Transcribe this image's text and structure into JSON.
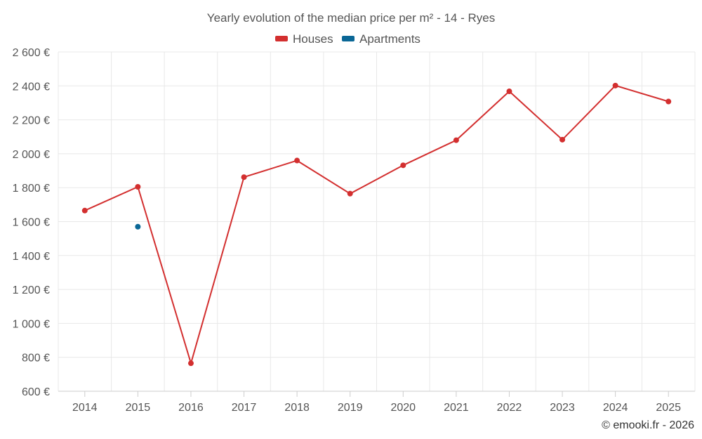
{
  "chart_data": {
    "type": "line",
    "title": "Yearly evolution of the median price per m² - 14 - Ryes",
    "xlabel": "",
    "ylabel": "",
    "categories": [
      "2014",
      "2015",
      "2016",
      "2017",
      "2018",
      "2019",
      "2020",
      "2021",
      "2022",
      "2023",
      "2024",
      "2025"
    ],
    "ylim": [
      600,
      2600
    ],
    "yticks": [
      600,
      800,
      1000,
      1200,
      1400,
      1600,
      1800,
      2000,
      2200,
      2400,
      2600
    ],
    "ytick_labels": [
      "600 €",
      "800 €",
      "1 000 €",
      "1 200 €",
      "1 400 €",
      "1 600 €",
      "1 800 €",
      "2 000 €",
      "2 200 €",
      "2 400 €",
      "2 600 €"
    ],
    "grid": true,
    "legend_position": "top-center",
    "series": [
      {
        "name": "Houses",
        "color": "#d32f2f",
        "values": [
          1665,
          1805,
          765,
          1862,
          1960,
          1765,
          1932,
          2080,
          2368,
          2083,
          2402,
          2308
        ]
      },
      {
        "name": "Apartments",
        "color": "#0a6796",
        "values": [
          null,
          1570,
          null,
          null,
          null,
          null,
          null,
          null,
          null,
          null,
          null,
          null
        ]
      }
    ],
    "credit": "© emooki.fr - 2026"
  }
}
